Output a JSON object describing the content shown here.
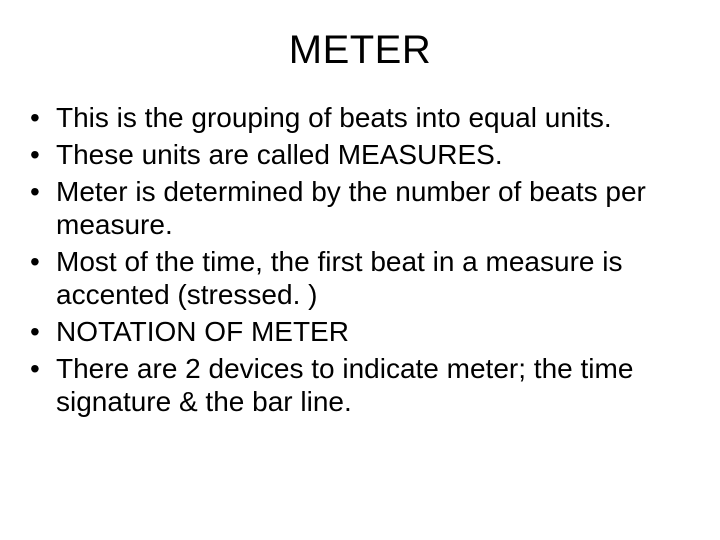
{
  "slide": {
    "title": "METER",
    "title_fontsize": 40,
    "body_fontsize": 28,
    "background_color": "#ffffff",
    "text_color": "#000000",
    "bullets": [
      "This is the grouping of beats into equal units.",
      "These units are called MEASURES.",
      "Meter is determined by the number of beats per measure.",
      "Most of the time, the first beat in a measure is accented (stressed. )",
      "NOTATION OF METER",
      "There are 2 devices to indicate meter; the time signature & the bar line."
    ]
  }
}
